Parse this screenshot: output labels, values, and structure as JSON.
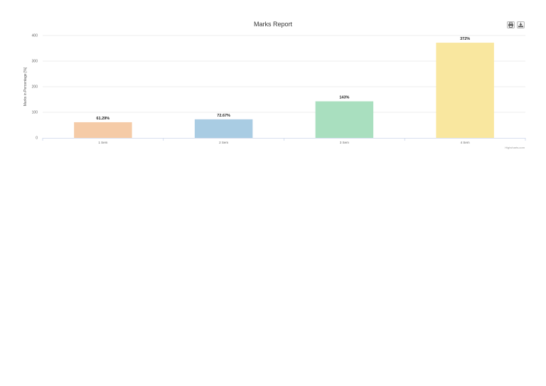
{
  "chart_data": {
    "type": "bar",
    "title": "Marks Report",
    "ylabel": "Marks in Percentage [%]",
    "xlabel": "",
    "categories": [
      "1 Sem",
      "2 Sem",
      "3 Sem",
      "4 Sem"
    ],
    "values": [
      61.29,
      72.67,
      143,
      372
    ],
    "data_labels": [
      "61.29%",
      "72.67%",
      "143%",
      "372%"
    ],
    "yticks": [
      0,
      100,
      200,
      300,
      400
    ],
    "ylim": [
      0,
      400
    ],
    "grid": true,
    "legend": "none",
    "colors": [
      "#f5cba7",
      "#a9cce3",
      "#a9dfbf",
      "#f9e79f"
    ],
    "credits": "Highcharts.com"
  },
  "toolbar": {
    "print_icon": "printer-icon",
    "export_icon": "download-icon"
  }
}
